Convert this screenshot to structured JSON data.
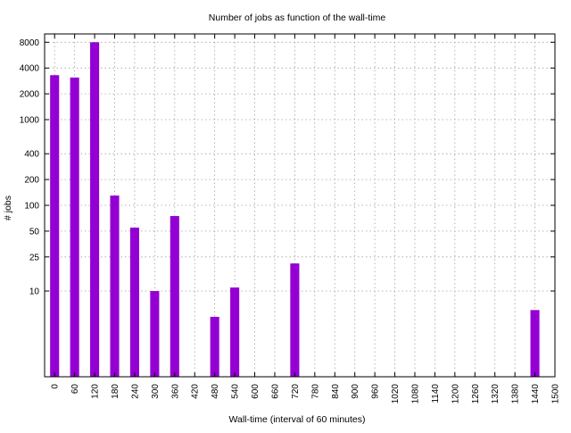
{
  "chart_data": {
    "type": "bar",
    "title": "Number of jobs as function of the wall-time",
    "xlabel": "Wall-time (interval of 60 minutes)",
    "ylabel": "# jobs",
    "yscale": "log",
    "xlim": [
      -30,
      1500
    ],
    "ylim": [
      1,
      10000
    ],
    "grid": true,
    "bar_color": "#9400d3",
    "xticks": [
      0,
      60,
      120,
      180,
      240,
      300,
      360,
      420,
      480,
      540,
      600,
      660,
      720,
      780,
      840,
      900,
      960,
      1020,
      1080,
      1140,
      1200,
      1260,
      1320,
      1380,
      1440,
      1500
    ],
    "yticks": [
      {
        "value": 10,
        "label": "10"
      },
      {
        "value": 25,
        "label": "25"
      },
      {
        "value": 50,
        "label": "50"
      },
      {
        "value": 100,
        "label": "100"
      },
      {
        "value": 200,
        "label": "200"
      },
      {
        "value": 400,
        "label": "400"
      },
      {
        "value": 1000,
        "label": "1000"
      },
      {
        "value": 2000,
        "label": "2000"
      },
      {
        "value": 4000,
        "label": "4000"
      },
      {
        "value": 8000,
        "label": "8000"
      }
    ],
    "categories": [
      0,
      60,
      120,
      180,
      240,
      300,
      360,
      420,
      480,
      540,
      600,
      660,
      720,
      780,
      840,
      900,
      960,
      1020,
      1080,
      1140,
      1200,
      1260,
      1320,
      1380,
      1440
    ],
    "values": [
      3300,
      3100,
      8000,
      130,
      55,
      10,
      75,
      null,
      5,
      11,
      null,
      null,
      21,
      null,
      null,
      null,
      null,
      null,
      null,
      null,
      null,
      null,
      null,
      null,
      6
    ]
  }
}
